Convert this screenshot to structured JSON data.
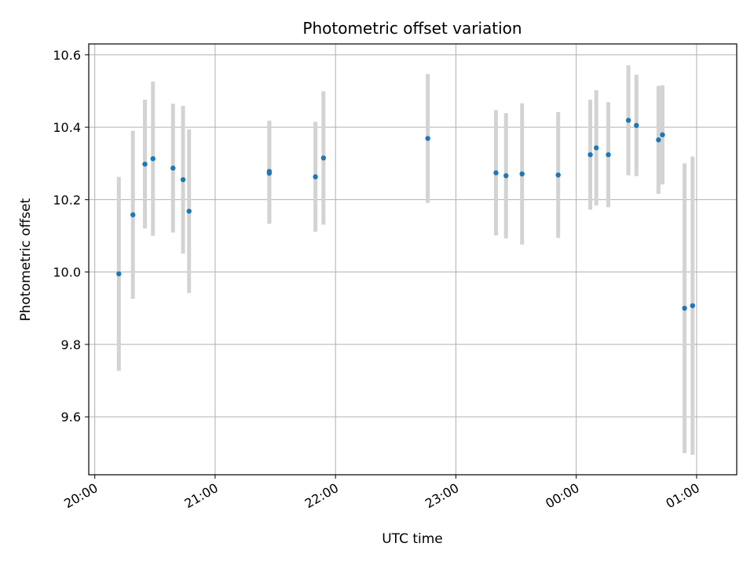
{
  "chart_data": {
    "type": "scatter",
    "title": "Photometric offset variation",
    "xlabel": "UTC time",
    "ylabel": "Photometric offset",
    "x_unit": "time of day (UTC), spanning midnight",
    "xlim": [
      "19:57",
      "01:20"
    ],
    "ylim": [
      9.44,
      10.63
    ],
    "x_ticks": [
      "20:00",
      "21:00",
      "22:00",
      "23:00",
      "00:00",
      "01:00"
    ],
    "y_ticks": [
      "9.6",
      "9.8",
      "10.0",
      "10.2",
      "10.4",
      "10.6"
    ],
    "grid": true,
    "legend": "none",
    "point_color": "#1f77b4",
    "errorbar_color": "#d3d3d3",
    "series": [
      {
        "points": [
          {
            "x": "20:12",
            "y": 9.995,
            "err": 0.268
          },
          {
            "x": "20:19",
            "y": 10.158,
            "err": 0.232
          },
          {
            "x": "20:25",
            "y": 10.298,
            "err": 0.178
          },
          {
            "x": "20:29",
            "y": 10.313,
            "err": 0.213
          },
          {
            "x": "20:39",
            "y": 10.287,
            "err": 0.178
          },
          {
            "x": "20:44",
            "y": 10.255,
            "err": 0.204
          },
          {
            "x": "20:47",
            "y": 10.168,
            "err": 0.226
          },
          {
            "x": "21:27",
            "y": 10.278,
            "err": 0.14
          },
          {
            "x": "21:27",
            "y": 10.273,
            "err": 0.14
          },
          {
            "x": "21:50",
            "y": 10.263,
            "err": 0.152
          },
          {
            "x": "21:54",
            "y": 10.315,
            "err": 0.184
          },
          {
            "x": "22:46",
            "y": 10.369,
            "err": 0.178
          },
          {
            "x": "23:20",
            "y": 10.274,
            "err": 0.173
          },
          {
            "x": "23:25",
            "y": 10.266,
            "err": 0.173
          },
          {
            "x": "23:33",
            "y": 10.271,
            "err": 0.195
          },
          {
            "x": "23:51",
            "y": 10.268,
            "err": 0.174
          },
          {
            "x": "00:07",
            "y": 10.324,
            "err": 0.152
          },
          {
            "x": "00:10",
            "y": 10.343,
            "err": 0.159
          },
          {
            "x": "00:16",
            "y": 10.324,
            "err": 0.145
          },
          {
            "x": "00:26",
            "y": 10.419,
            "err": 0.152
          },
          {
            "x": "00:30",
            "y": 10.405,
            "err": 0.14
          },
          {
            "x": "00:41",
            "y": 10.365,
            "err": 0.149
          },
          {
            "x": "00:43",
            "y": 10.379,
            "err": 0.137
          },
          {
            "x": "00:54",
            "y": 9.9,
            "err": 0.4
          },
          {
            "x": "00:58",
            "y": 9.907,
            "err": 0.412
          }
        ]
      }
    ]
  }
}
